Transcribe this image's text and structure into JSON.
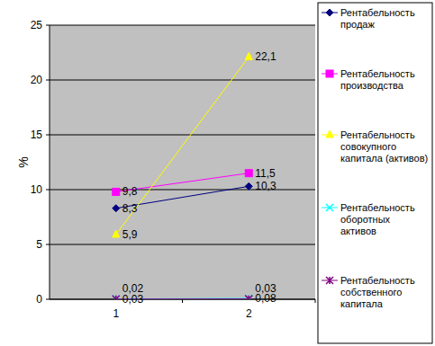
{
  "chart_data": {
    "type": "line",
    "categories": [
      "1",
      "2"
    ],
    "ylabel": "%",
    "ylim": [
      0,
      25
    ],
    "yticks": [
      0,
      5,
      10,
      15,
      20,
      25
    ],
    "grid": true,
    "legend": "right",
    "data_labels": true,
    "series": [
      {
        "name": "Рентабельность продаж",
        "color": "#000080",
        "marker": "diamond",
        "values": [
          8.3,
          10.3
        ],
        "value_labels": [
          "8,3",
          "10,3"
        ]
      },
      {
        "name": "Рентабельность производства",
        "color": "#ff00ff",
        "marker": "square",
        "values": [
          9.8,
          11.5
        ],
        "value_labels": [
          "9,8",
          "11,5"
        ]
      },
      {
        "name": "Рентабельность совокупного капитала (активов)",
        "color": "#ffff00",
        "marker": "triangle",
        "values": [
          5.9,
          22.1
        ],
        "value_labels": [
          "5,9",
          "22,1"
        ]
      },
      {
        "name": "Рентабельность оборотных активов",
        "color": "#00ffff",
        "marker": "x",
        "values": [
          0.03,
          0.08
        ],
        "value_labels": [
          "0,03",
          "0,08"
        ]
      },
      {
        "name": "Рентабельность собственного капитала",
        "color": "#800080",
        "marker": "star",
        "values": [
          0.02,
          0.03
        ],
        "value_labels": [
          "0,02",
          "0,03"
        ]
      }
    ]
  }
}
